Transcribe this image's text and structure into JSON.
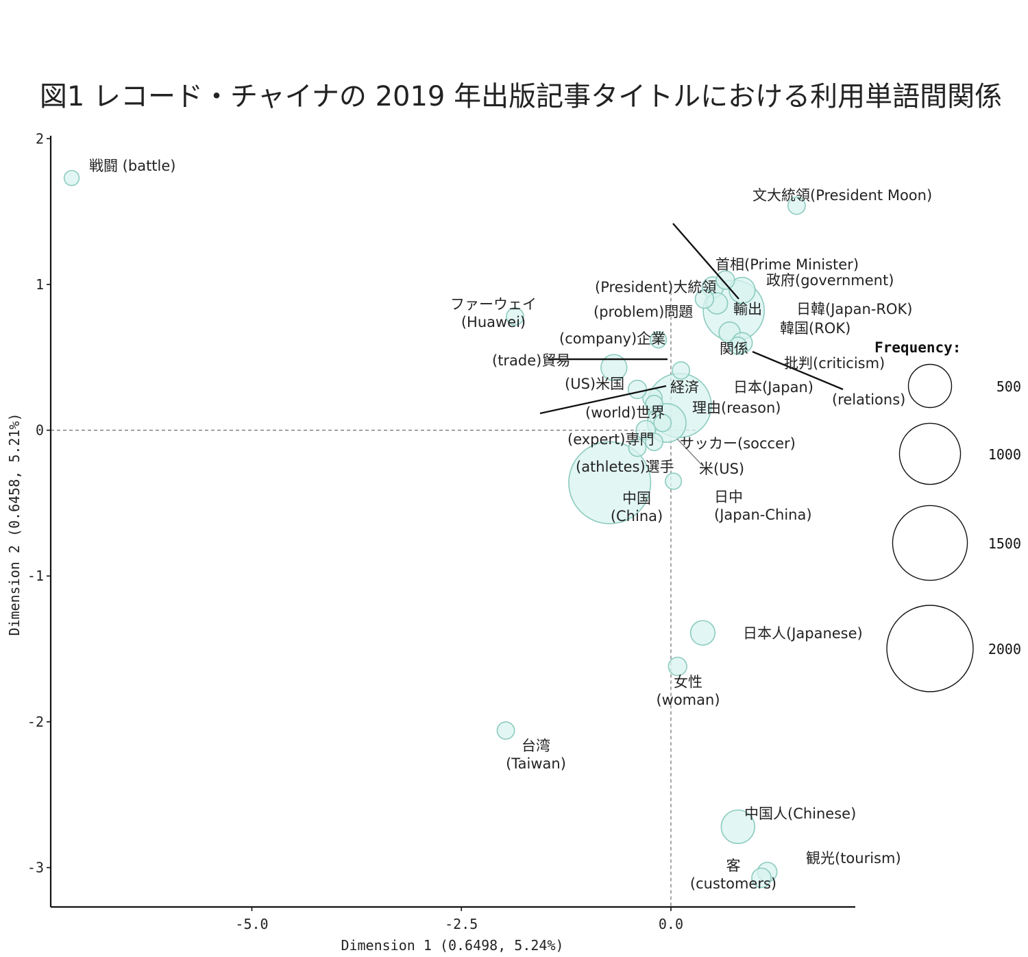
{
  "chart_data": {
    "type": "scatter",
    "title": "図1 レコード・チャイナの 2019 年出版記事タイトルにおける利用単語間関係",
    "xlabel": "Dimension 1 (0.6498, 5.24%)",
    "ylabel": "Dimension 2 (0.6458, 5.21%)",
    "xlim": [
      -7.4,
      2.2
    ],
    "ylim": [
      -3.27,
      2.02
    ],
    "xticks": [
      -5.0,
      -2.5,
      0.0
    ],
    "xtick_labels": [
      "-5.0",
      "-2.5",
      "0.0"
    ],
    "yticks": [
      2,
      1,
      0,
      -1,
      -2,
      -3
    ],
    "ytick_labels": [
      "2",
      "1",
      "0",
      "-1",
      "-2",
      "-3"
    ],
    "reference_lines": {
      "x": 0,
      "y": 0,
      "style": "dashed"
    },
    "grid": false,
    "point_color": "#d8f3ef",
    "point_stroke": "#8ccbbf",
    "points": [
      {
        "label": "戦闘 (battle)",
        "x": -7.15,
        "y": 1.73,
        "freq": 60
      },
      {
        "label": "文大統領(President Moon)",
        "x": 1.5,
        "y": 1.54,
        "freq": 80
      },
      {
        "label": "首相(Prime Minister)",
        "x": 0.65,
        "y": 1.03,
        "freq": 90
      },
      {
        "label": "政府(government)",
        "x": 0.85,
        "y": 0.96,
        "freq": 180
      },
      {
        "label": "(President)大統領",
        "x": 0.5,
        "y": 0.98,
        "freq": 120
      },
      {
        "label": "(problem)問題",
        "x": 0.4,
        "y": 0.9,
        "freq": 90
      },
      {
        "label": "輸出",
        "x": 0.55,
        "y": 0.87,
        "freq": 120
      },
      {
        "label": "日韓(Japan-ROK)",
        "x": 0.75,
        "y": 0.82,
        "freq": 1000
      },
      {
        "label": "ファーウェイ\n(Huawei)",
        "x": -1.86,
        "y": 0.78,
        "freq": 80
      },
      {
        "label": "韓国(ROK)",
        "x": 0.7,
        "y": 0.67,
        "freq": 120
      },
      {
        "label": "(company)企業",
        "x": -0.15,
        "y": 0.62,
        "freq": 70
      },
      {
        "label": "関係",
        "x": 0.85,
        "y": 0.6,
        "freq": 110
      },
      {
        "label": "批判(criticism)",
        "x": 0.8,
        "y": 0.58,
        "freq": 80
      },
      {
        "label": "(trade)貿易",
        "x": -0.68,
        "y": 0.43,
        "freq": 180
      },
      {
        "label": "日本(Japan)",
        "x": 0.12,
        "y": 0.41,
        "freq": 80
      },
      {
        "label": "(US)米国",
        "x": -0.4,
        "y": 0.28,
        "freq": 90
      },
      {
        "label": "経済",
        "x": -0.22,
        "y": 0.22,
        "freq": 100
      },
      {
        "label": "(world)世界",
        "x": -0.2,
        "y": 0.18,
        "freq": 80
      },
      {
        "label": "理由(reason)",
        "x": 0.1,
        "y": 0.17,
        "freq": 1100
      },
      {
        "label": "(relations)",
        "x": -0.05,
        "y": 0.05,
        "freq": 400
      },
      {
        "label": "(expert)専門",
        "x": -0.1,
        "y": 0.05,
        "freq": 80
      },
      {
        "label": "サッカー(soccer)",
        "x": -0.3,
        "y": 0.0,
        "freq": 100
      },
      {
        "label": "(athletes)選手",
        "x": -0.4,
        "y": -0.12,
        "freq": 80
      },
      {
        "label": "米(US)",
        "x": -0.2,
        "y": -0.08,
        "freq": 80
      },
      {
        "label": "中国\n(China)",
        "x": -0.73,
        "y": -0.36,
        "freq": 1800
      },
      {
        "label": "日中\n(Japan-China)",
        "x": 0.03,
        "y": -0.35,
        "freq": 70
      },
      {
        "label": "日本人(Japanese)",
        "x": 0.38,
        "y": -1.39,
        "freq": 160
      },
      {
        "label": "女性\n(woman)",
        "x": 0.08,
        "y": -1.62,
        "freq": 90
      },
      {
        "label": "台湾\n(Taiwan)",
        "x": -1.97,
        "y": -2.06,
        "freq": 80
      },
      {
        "label": "中国人(Chinese)",
        "x": 0.8,
        "y": -2.72,
        "freq": 300
      },
      {
        "label": "観光(tourism)",
        "x": 1.15,
        "y": -3.03,
        "freq": 100
      },
      {
        "label": "客\n(customers)",
        "x": 1.08,
        "y": -3.07,
        "freq": 100
      }
    ],
    "legend": {
      "title": "Frequency:",
      "position": "right",
      "sizes": [
        500,
        1000,
        1500,
        2000
      ],
      "labels": [
        "500",
        "1000",
        "1500",
        "2000"
      ]
    }
  }
}
